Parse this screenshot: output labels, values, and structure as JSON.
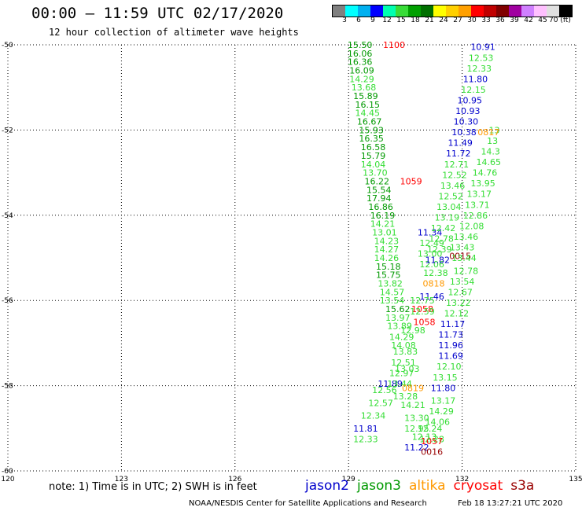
{
  "header": {
    "title": "00:00 – 11:59 UTC 02/17/2020",
    "subtitle": "12 hour collection of altimeter wave heights"
  },
  "legend": {
    "colors": [
      "#808080",
      "#00ffff",
      "#00b0f0",
      "#0000ff",
      "#00ffb0",
      "#38dc38",
      "#00a000",
      "#007000",
      "#ffff00",
      "#ffd000",
      "#ffa000",
      "#ff0000",
      "#c00000",
      "#800000",
      "#a000a0",
      "#d080ff",
      "#ffc0ff",
      "#e0e0e0",
      "#000000"
    ],
    "ticks": [
      "3",
      "6",
      "9",
      "12",
      "15",
      "18",
      "21",
      "24",
      "27",
      "30",
      "33",
      "36",
      "39",
      "42",
      "45",
      "70 (ft)"
    ]
  },
  "note": "note: 1) Time is in UTC; 2) SWH is in feet",
  "satellites": [
    {
      "name": "jason2",
      "color": "#0000cc"
    },
    {
      "name": "jason3",
      "color": "#009900"
    },
    {
      "name": "altika",
      "color": "#ff9900"
    },
    {
      "name": "cryosat",
      "color": "#ff0000"
    },
    {
      "name": "s3a",
      "color": "#990000"
    }
  ],
  "footer": {
    "left": "NOAA/NESDIS Center for Satellite Applications and Research",
    "right": "Feb 18 13:27:21 UTC 2020"
  },
  "chart_data": {
    "type": "scatter",
    "xlim": [
      120,
      135
    ],
    "ylim": [
      -60,
      -50
    ],
    "xticks": [
      120,
      123,
      126,
      129,
      132,
      135
    ],
    "yticks": [
      -50,
      -52,
      -54,
      -56,
      -58,
      -60
    ],
    "xtick_labels": [
      "120",
      "123",
      "126",
      "129",
      "132",
      "135"
    ],
    "ytick_labels": [
      "-50",
      "-52",
      "-54",
      "-56",
      "-58",
      "-60"
    ],
    "grid": true,
    "points": [
      {
        "x": 129.3,
        "y": -50.0,
        "v": "15.50",
        "c": "#009900"
      },
      {
        "x": 130.2,
        "y": -50.0,
        "v": "1100",
        "c": "#ff0000"
      },
      {
        "x": 129.3,
        "y": -50.2,
        "v": "16.06",
        "c": "#009900"
      },
      {
        "x": 129.3,
        "y": -50.4,
        "v": "16.36",
        "c": "#009900"
      },
      {
        "x": 129.35,
        "y": -50.6,
        "v": "16.09",
        "c": "#009900"
      },
      {
        "x": 129.35,
        "y": -50.8,
        "v": "14.29",
        "c": "#33dd33"
      },
      {
        "x": 129.4,
        "y": -51.0,
        "v": "13.68",
        "c": "#33dd33"
      },
      {
        "x": 129.45,
        "y": -51.2,
        "v": "15.89",
        "c": "#009900"
      },
      {
        "x": 129.5,
        "y": -51.4,
        "v": "16.15",
        "c": "#009900"
      },
      {
        "x": 129.5,
        "y": -51.6,
        "v": "14.45",
        "c": "#33dd33"
      },
      {
        "x": 129.55,
        "y": -51.8,
        "v": "16.67",
        "c": "#009900"
      },
      {
        "x": 129.6,
        "y": -52.0,
        "v": "15.93",
        "c": "#009900"
      },
      {
        "x": 129.6,
        "y": -52.2,
        "v": "16.35",
        "c": "#009900"
      },
      {
        "x": 129.65,
        "y": -52.4,
        "v": "16.58",
        "c": "#009900"
      },
      {
        "x": 129.65,
        "y": -52.6,
        "v": "15.79",
        "c": "#009900"
      },
      {
        "x": 129.65,
        "y": -52.8,
        "v": "14.04",
        "c": "#33dd33"
      },
      {
        "x": 129.7,
        "y": -53.0,
        "v": "13.70",
        "c": "#33dd33"
      },
      {
        "x": 129.75,
        "y": -53.2,
        "v": "16.22",
        "c": "#009900"
      },
      {
        "x": 130.65,
        "y": -53.2,
        "v": "1059",
        "c": "#ff0000"
      },
      {
        "x": 129.8,
        "y": -53.4,
        "v": "15.54",
        "c": "#009900"
      },
      {
        "x": 129.8,
        "y": -53.6,
        "v": "17.94",
        "c": "#009900"
      },
      {
        "x": 129.85,
        "y": -53.8,
        "v": "16.86",
        "c": "#009900"
      },
      {
        "x": 129.9,
        "y": -54.0,
        "v": "16.19",
        "c": "#009900"
      },
      {
        "x": 129.9,
        "y": -54.2,
        "v": "14.21",
        "c": "#33dd33"
      },
      {
        "x": 129.95,
        "y": -54.4,
        "v": "13.01",
        "c": "#33dd33"
      },
      {
        "x": 130.0,
        "y": -54.6,
        "v": "14.23",
        "c": "#33dd33"
      },
      {
        "x": 130.0,
        "y": -54.8,
        "v": "14.27",
        "c": "#33dd33"
      },
      {
        "x": 130.0,
        "y": -55.0,
        "v": "14.26",
        "c": "#33dd33"
      },
      {
        "x": 130.05,
        "y": -55.2,
        "v": "15.18",
        "c": "#009900"
      },
      {
        "x": 130.05,
        "y": -55.4,
        "v": "15.75",
        "c": "#009900"
      },
      {
        "x": 130.1,
        "y": -55.6,
        "v": "13.82",
        "c": "#33dd33"
      },
      {
        "x": 130.15,
        "y": -55.8,
        "v": "14.57",
        "c": "#33dd33"
      },
      {
        "x": 130.15,
        "y": -56.0,
        "v": "13.54",
        "c": "#33dd33"
      },
      {
        "x": 130.3,
        "y": -56.2,
        "v": "15.62",
        "c": "#009900"
      },
      {
        "x": 130.95,
        "y": -56.2,
        "v": "1058",
        "c": "#ff0000"
      },
      {
        "x": 130.3,
        "y": -56.4,
        "v": "13.97",
        "c": "#33dd33"
      },
      {
        "x": 131.0,
        "y": -56.5,
        "v": "1058",
        "c": "#ff0000"
      },
      {
        "x": 130.35,
        "y": -56.6,
        "v": "13.89",
        "c": "#33dd33"
      },
      {
        "x": 130.7,
        "y": -56.7,
        "v": "12.98",
        "c": "#33dd33"
      },
      {
        "x": 130.4,
        "y": -56.85,
        "v": "14.29",
        "c": "#33dd33"
      },
      {
        "x": 130.45,
        "y": -57.05,
        "v": "14.08",
        "c": "#33dd33"
      },
      {
        "x": 130.5,
        "y": -57.2,
        "v": "13.83",
        "c": "#33dd33"
      },
      {
        "x": 130.45,
        "y": -57.45,
        "v": "12.51",
        "c": "#33dd33"
      },
      {
        "x": 130.55,
        "y": -57.6,
        "v": "13.03",
        "c": "#33dd33"
      },
      {
        "x": 130.4,
        "y": -57.7,
        "v": "12.97",
        "c": "#33dd33"
      },
      {
        "x": 130.1,
        "y": -57.95,
        "v": "11.89",
        "c": "#0000cc"
      },
      {
        "x": 130.35,
        "y": -57.95,
        "v": "13.44",
        "c": "#33dd33"
      },
      {
        "x": 130.7,
        "y": -58.05,
        "v": "0819",
        "c": "#ff9900"
      },
      {
        "x": 129.95,
        "y": -58.1,
        "v": "12.56",
        "c": "#33dd33"
      },
      {
        "x": 130.5,
        "y": -58.25,
        "v": "13.28",
        "c": "#33dd33"
      },
      {
        "x": 129.85,
        "y": -58.4,
        "v": "12.57",
        "c": "#33dd33"
      },
      {
        "x": 130.7,
        "y": -58.45,
        "v": "14.21",
        "c": "#33dd33"
      },
      {
        "x": 129.65,
        "y": -58.7,
        "v": "12.34",
        "c": "#33dd33"
      },
      {
        "x": 130.8,
        "y": -58.75,
        "v": "13.30",
        "c": "#33dd33"
      },
      {
        "x": 129.45,
        "y": -59.0,
        "v": "11.81",
        "c": "#0000cc"
      },
      {
        "x": 130.8,
        "y": -59.0,
        "v": "12.95",
        "c": "#33dd33"
      },
      {
        "x": 129.45,
        "y": -59.25,
        "v": "12.33",
        "c": "#33dd33"
      },
      {
        "x": 131.2,
        "y": -59.25,
        "v": "12.28",
        "c": "#33dd33"
      },
      {
        "x": 130.8,
        "y": -59.45,
        "v": "11.22",
        "c": "#0000cc"
      },
      {
        "x": 131.15,
        "y": -59.0,
        "v": "12.24",
        "c": "#33dd33"
      },
      {
        "x": 131.2,
        "y": -59.3,
        "v": "1057",
        "c": "#ff0000"
      },
      {
        "x": 131.0,
        "y": -59.2,
        "v": "12.13",
        "c": "#33dd33"
      },
      {
        "x": 131.35,
        "y": -58.85,
        "v": "14.06",
        "c": "#33dd33"
      },
      {
        "x": 131.45,
        "y": -58.6,
        "v": "14.29",
        "c": "#33dd33"
      },
      {
        "x": 131.5,
        "y": -58.35,
        "v": "13.17",
        "c": "#33dd33"
      },
      {
        "x": 131.5,
        "y": -58.05,
        "v": "11.80",
        "c": "#0000cc"
      },
      {
        "x": 131.55,
        "y": -57.8,
        "v": "13.15",
        "c": "#33dd33"
      },
      {
        "x": 131.65,
        "y": -57.55,
        "v": "12.10",
        "c": "#33dd33"
      },
      {
        "x": 131.7,
        "y": -57.3,
        "v": "11.69",
        "c": "#0000cc"
      },
      {
        "x": 131.7,
        "y": -57.05,
        "v": "11.96",
        "c": "#0000cc"
      },
      {
        "x": 131.7,
        "y": -56.8,
        "v": "11.73",
        "c": "#0000cc"
      },
      {
        "x": 131.75,
        "y": -56.55,
        "v": "11.17",
        "c": "#0000cc"
      },
      {
        "x": 131.85,
        "y": -56.3,
        "v": "12.12",
        "c": "#33dd33"
      },
      {
        "x": 131.9,
        "y": -56.05,
        "v": "13.22",
        "c": "#33dd33"
      },
      {
        "x": 131.95,
        "y": -55.8,
        "v": "12.67",
        "c": "#33dd33"
      },
      {
        "x": 132.0,
        "y": -55.55,
        "v": "13.54",
        "c": "#33dd33"
      },
      {
        "x": 132.1,
        "y": -55.3,
        "v": "12.78",
        "c": "#33dd33"
      },
      {
        "x": 131.95,
        "y": -54.95,
        "v": "0015",
        "c": "#990000"
      },
      {
        "x": 132.05,
        "y": -55.0,
        "v": "13.44",
        "c": "#33dd33"
      },
      {
        "x": 132.0,
        "y": -54.75,
        "v": "13.43",
        "c": "#33dd33"
      },
      {
        "x": 132.1,
        "y": -54.5,
        "v": "13.46",
        "c": "#33dd33"
      },
      {
        "x": 132.25,
        "y": -54.25,
        "v": "12.08",
        "c": "#33dd33"
      },
      {
        "x": 132.35,
        "y": -54.0,
        "v": "12.86",
        "c": "#33dd33"
      },
      {
        "x": 132.4,
        "y": -53.75,
        "v": "13.71",
        "c": "#33dd33"
      },
      {
        "x": 132.45,
        "y": -53.5,
        "v": "13.17",
        "c": "#33dd33"
      },
      {
        "x": 132.55,
        "y": -53.25,
        "v": "13.95",
        "c": "#33dd33"
      },
      {
        "x": 132.6,
        "y": -53.0,
        "v": "14.76",
        "c": "#33dd33"
      },
      {
        "x": 132.7,
        "y": -52.75,
        "v": "14.65",
        "c": "#33dd33"
      },
      {
        "x": 132.75,
        "y": -52.5,
        "v": "14.3",
        "c": "#33dd33"
      },
      {
        "x": 132.8,
        "y": -52.25,
        "v": "13",
        "c": "#33dd33"
      },
      {
        "x": 132.85,
        "y": -52.0,
        "v": "13",
        "c": "#33dd33"
      },
      {
        "x": 131.25,
        "y": -55.6,
        "v": "0818",
        "c": "#ff9900"
      },
      {
        "x": 131.2,
        "y": -55.9,
        "v": "11.46",
        "c": "#0000cc"
      },
      {
        "x": 131.2,
        "y": -55.15,
        "v": "12.06",
        "c": "#33dd33"
      },
      {
        "x": 131.15,
        "y": -54.9,
        "v": "13.00",
        "c": "#33dd33"
      },
      {
        "x": 131.2,
        "y": -54.65,
        "v": "12.49",
        "c": "#33dd33"
      },
      {
        "x": 131.15,
        "y": -54.4,
        "v": "11.34",
        "c": "#0000cc"
      },
      {
        "x": 130.95,
        "y": -56.0,
        "v": "12.75",
        "c": "#33dd33"
      },
      {
        "x": 130.95,
        "y": -56.25,
        "v": "12.59",
        "c": "#33dd33"
      },
      {
        "x": 131.3,
        "y": -55.35,
        "v": "12.38",
        "c": "#33dd33"
      },
      {
        "x": 131.35,
        "y": -55.05,
        "v": "11.82",
        "c": "#0000cc"
      },
      {
        "x": 131.4,
        "y": -54.8,
        "v": "12.39",
        "c": "#33dd33"
      },
      {
        "x": 131.45,
        "y": -54.55,
        "v": "12.78",
        "c": "#33dd33"
      },
      {
        "x": 131.5,
        "y": -54.3,
        "v": "12.42",
        "c": "#33dd33"
      },
      {
        "x": 131.6,
        "y": -54.05,
        "v": "13.19",
        "c": "#33dd33"
      },
      {
        "x": 131.65,
        "y": -53.8,
        "v": "13.04",
        "c": "#33dd33"
      },
      {
        "x": 131.7,
        "y": -53.55,
        "v": "12.52",
        "c": "#33dd33"
      },
      {
        "x": 131.75,
        "y": -53.3,
        "v": "13.46",
        "c": "#33dd33"
      },
      {
        "x": 131.8,
        "y": -53.05,
        "v": "12.52",
        "c": "#33dd33"
      },
      {
        "x": 131.85,
        "y": -52.8,
        "v": "12.71",
        "c": "#33dd33"
      },
      {
        "x": 131.9,
        "y": -52.55,
        "v": "11.72",
        "c": "#0000cc"
      },
      {
        "x": 131.95,
        "y": -52.3,
        "v": "11.49",
        "c": "#0000cc"
      },
      {
        "x": 132.05,
        "y": -52.05,
        "v": "10.38",
        "c": "#0000cc"
      },
      {
        "x": 132.7,
        "y": -52.05,
        "v": "0817",
        "c": "#ff9900"
      },
      {
        "x": 132.1,
        "y": -51.8,
        "v": "10.30",
        "c": "#0000cc"
      },
      {
        "x": 132.15,
        "y": -51.55,
        "v": "10.93",
        "c": "#0000cc"
      },
      {
        "x": 132.2,
        "y": -51.3,
        "v": "10.95",
        "c": "#0000cc"
      },
      {
        "x": 132.3,
        "y": -51.05,
        "v": "12.15",
        "c": "#33dd33"
      },
      {
        "x": 132.35,
        "y": -50.8,
        "v": "11.80",
        "c": "#0000cc"
      },
      {
        "x": 132.45,
        "y": -50.55,
        "v": "12.33",
        "c": "#33dd33"
      },
      {
        "x": 132.5,
        "y": -50.3,
        "v": "12.53",
        "c": "#33dd33"
      },
      {
        "x": 132.55,
        "y": -50.05,
        "v": "10.91",
        "c": "#0000cc"
      },
      {
        "x": 131.2,
        "y": -59.55,
        "v": "0016",
        "c": "#990000"
      }
    ]
  }
}
